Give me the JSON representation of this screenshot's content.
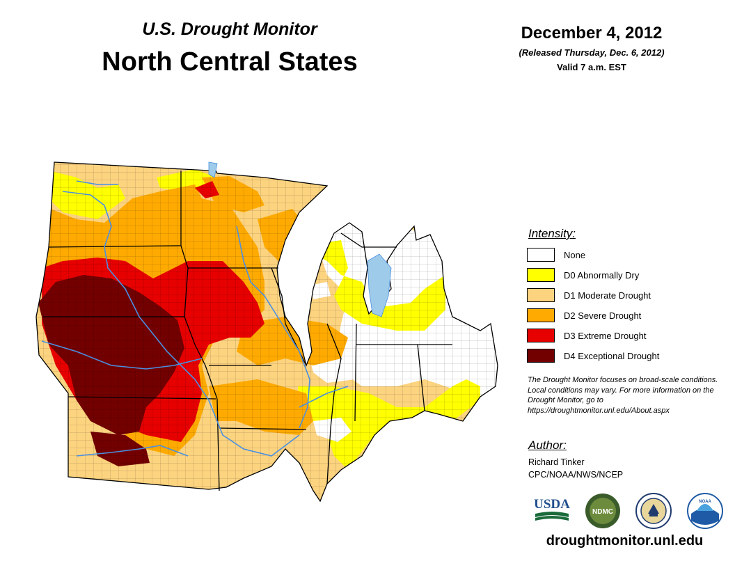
{
  "header": {
    "subtitle": "U.S. Drought Monitor",
    "title": "North Central States",
    "date": "December 4, 2012",
    "released": "(Released Thursday, Dec. 6, 2012)",
    "valid": "Valid 7 a.m. EST"
  },
  "legend": {
    "title": "Intensity:",
    "items": [
      {
        "label": "None",
        "color": "#ffffff"
      },
      {
        "label": "D0 Abnormally Dry",
        "color": "#ffff00"
      },
      {
        "label": "D1 Moderate Drought",
        "color": "#fcd37f"
      },
      {
        "label": "D2 Severe Drought",
        "color": "#ffaa00"
      },
      {
        "label": "D3 Extreme Drought",
        "color": "#e60000"
      },
      {
        "label": "D4 Exceptional Drought",
        "color": "#730000"
      }
    ]
  },
  "note": "The Drought Monitor focuses on broad-scale conditions. Local conditions may vary. For more information on the Drought Monitor, go to https://droughtmonitor.unl.edu/About.aspx",
  "author": {
    "title": "Author:",
    "name": "Richard Tinker",
    "org": "CPC/NOAA/NWS/NCEP"
  },
  "logos": [
    {
      "name": "usda-logo",
      "text": "USDA"
    },
    {
      "name": "ndmc-logo",
      "text": "NDMC"
    },
    {
      "name": "doc-seal-logo",
      "text": ""
    },
    {
      "name": "noaa-logo",
      "text": "NOAA"
    }
  ],
  "website": "droughtmonitor.unl.edu",
  "colors": {
    "water": "#9ecbe9",
    "river": "#4a90e2",
    "state_border": "#000000"
  }
}
